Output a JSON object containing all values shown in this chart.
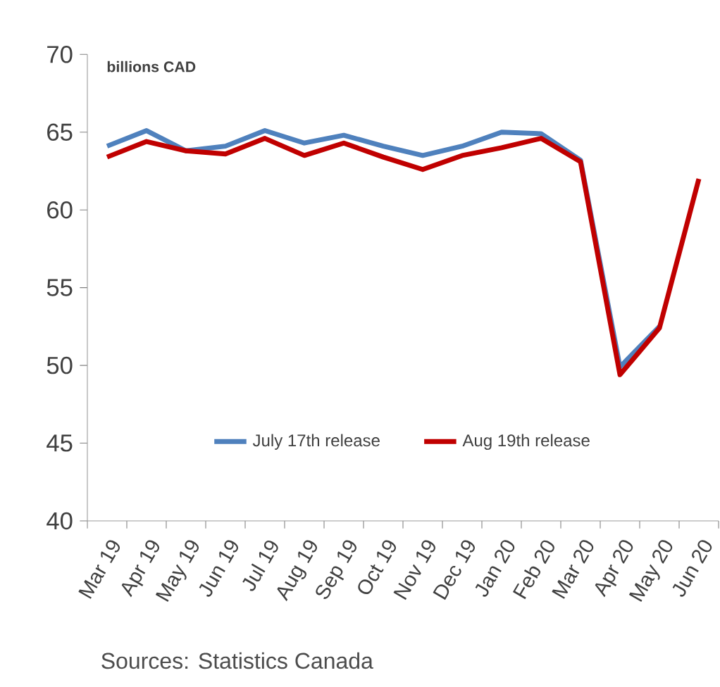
{
  "chart_data": {
    "type": "line",
    "ylabel": "billions CAD",
    "categories": [
      "Mar 19",
      "Apr 19",
      "May 19",
      "Jun 19",
      "Jul 19",
      "Aug 19",
      "Sep 19",
      "Oct 19",
      "Nov 19",
      "Dec 19",
      "Jan 20",
      "Feb 20",
      "Mar 20",
      "Apr 20",
      "May 20",
      "Jun 20"
    ],
    "series": [
      {
        "name": "July 17th release",
        "color": "#4f81bd",
        "values": [
          64.1,
          65.1,
          63.8,
          64.1,
          65.1,
          64.3,
          64.8,
          64.1,
          63.5,
          64.1,
          65.0,
          64.9,
          63.2,
          49.9,
          52.5,
          null
        ]
      },
      {
        "name": "Aug 19th release",
        "color": "#c00000",
        "values": [
          63.4,
          64.4,
          63.8,
          63.6,
          64.6,
          63.5,
          64.3,
          63.4,
          62.6,
          63.5,
          64.0,
          64.6,
          63.1,
          49.4,
          52.4,
          62.0
        ]
      }
    ],
    "ylim": [
      40,
      70
    ],
    "yticks": [
      40,
      45,
      50,
      55,
      60,
      65,
      70
    ],
    "legend": "bottom",
    "grid": false,
    "marker": "none",
    "line_style": "solid",
    "annotations": [
      "Sources: Statistics Canada"
    ]
  }
}
